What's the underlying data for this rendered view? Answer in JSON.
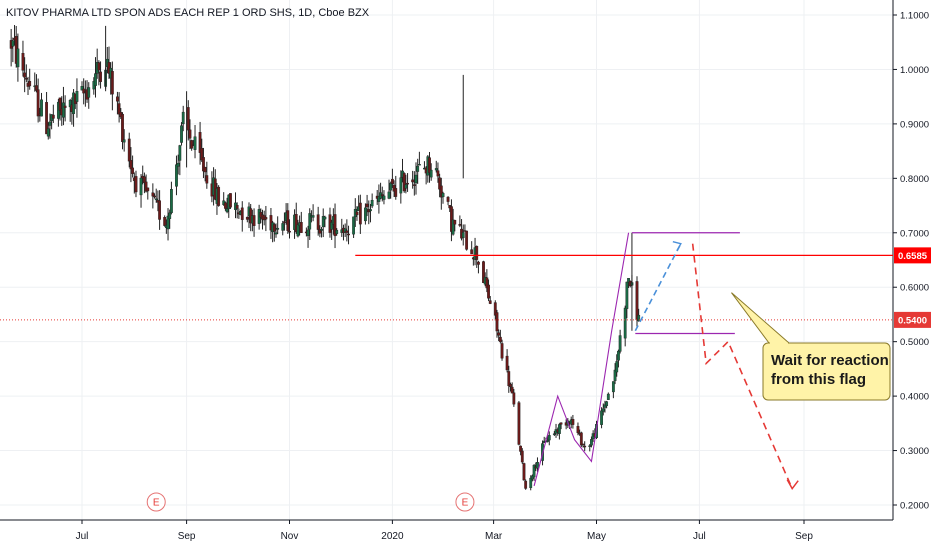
{
  "header": {
    "title": "KITOV PHARMA LTD SPON ADS EACH REP 1 ORD SHS, 1D, Cboe BZX"
  },
  "chart_data": {
    "type": "candlestick",
    "title": "KITOV PHARMA LTD SPON ADS EACH REP 1 ORD SHS, 1D, Cboe BZX",
    "ylim": [
      0.18,
      1.11
    ],
    "y_scale": "linear",
    "y_tick_labels": [
      "1.1000",
      "1.0000",
      "0.9000",
      "0.8000",
      "0.7000",
      "0.6000",
      "0.5000",
      "0.4000",
      "0.3000",
      "0.2000"
    ],
    "y_ticks": [
      1.1,
      1.0,
      0.9,
      0.8,
      0.7,
      0.6,
      0.5,
      0.4,
      0.3,
      0.2
    ],
    "x_tick_labels": [
      "Jul",
      "Sep",
      "Nov",
      "2020",
      "Mar",
      "May",
      "Jul",
      "Sep"
    ],
    "x_ticks": [
      "2019-07-01",
      "2019-09-01",
      "2019-11-01",
      "2020-01-01",
      "2020-03-01",
      "2020-05-01",
      "2020-07-01",
      "2020-09-01"
    ],
    "x_range": [
      "2019-05-20",
      "2020-10-20"
    ],
    "grid": true,
    "colors": {
      "up": "#26a69a",
      "down": "#ef5350",
      "wick": "#222222",
      "body_up": "#1a6b45",
      "body_down": "#6b1a1a"
    },
    "key_level": {
      "value": 0.6585,
      "label": "0.6585",
      "from": "2019-12-10",
      "color": "#ff0000"
    },
    "current_price": {
      "value": 0.54,
      "label": "0.5400",
      "color": "#e53935"
    },
    "earnings_markers": [
      {
        "date": "2019-08-14",
        "label": "E"
      },
      {
        "date": "2020-02-13",
        "label": "E"
      }
    ],
    "waypoints": [
      {
        "date": "2019-05-20",
        "value": 1.05
      },
      {
        "date": "2019-06-10",
        "value": 0.9
      },
      {
        "date": "2019-07-01",
        "value": 0.95
      },
      {
        "date": "2019-07-15",
        "value": 1.02
      },
      {
        "date": "2019-08-01",
        "value": 0.8
      },
      {
        "date": "2019-08-20",
        "value": 0.72
      },
      {
        "date": "2019-08-30",
        "value": 0.9
      },
      {
        "date": "2019-09-20",
        "value": 0.76
      },
      {
        "date": "2019-10-20",
        "value": 0.72
      },
      {
        "date": "2019-11-15",
        "value": 0.72
      },
      {
        "date": "2019-12-05",
        "value": 0.71
      },
      {
        "date": "2019-12-20",
        "value": 0.75
      },
      {
        "date": "2020-01-10",
        "value": 0.8
      },
      {
        "date": "2020-01-25",
        "value": 0.83
      },
      {
        "date": "2020-02-05",
        "value": 0.72
      },
      {
        "date": "2020-02-20",
        "value": 0.66
      },
      {
        "date": "2020-03-01",
        "value": 0.55
      },
      {
        "date": "2020-03-12",
        "value": 0.4
      },
      {
        "date": "2020-03-20",
        "value": 0.23
      },
      {
        "date": "2020-04-01",
        "value": 0.32
      },
      {
        "date": "2020-04-15",
        "value": 0.36
      },
      {
        "date": "2020-04-25",
        "value": 0.3
      },
      {
        "date": "2020-05-01",
        "value": 0.34
      },
      {
        "date": "2020-05-12",
        "value": 0.44
      },
      {
        "date": "2020-05-20",
        "value": 0.62
      },
      {
        "date": "2020-05-26",
        "value": 0.54
      }
    ],
    "pattern": {
      "rise_line": [
        {
          "date": "2020-03-25",
          "value": 0.235
        },
        {
          "date": "2020-04-08",
          "value": 0.4
        },
        {
          "date": "2020-04-18",
          "value": 0.32
        },
        {
          "date": "2020-04-28",
          "value": 0.28
        },
        {
          "date": "2020-05-10",
          "value": 0.52
        },
        {
          "date": "2020-05-20",
          "value": 0.7
        }
      ],
      "flag_top": {
        "from": "2020-05-22",
        "to": "2020-07-25",
        "value": 0.7
      },
      "flag_bottom": {
        "from": "2020-05-24",
        "to": "2020-07-22",
        "value": 0.515
      },
      "color": "#9c27b0"
    },
    "projection_blue": [
      {
        "date": "2020-05-24",
        "value": 0.52
      },
      {
        "date": "2020-06-20",
        "value": 0.68
      }
    ],
    "projection_red": [
      {
        "date": "2020-06-27",
        "value": 0.68
      },
      {
        "date": "2020-07-05",
        "value": 0.46
      },
      {
        "date": "2020-07-18",
        "value": 0.5
      },
      {
        "date": "2020-08-25",
        "value": 0.23
      }
    ],
    "callout": {
      "lines": [
        "Wait for reaction",
        "from this flag"
      ],
      "pointer_date": "2020-07-20",
      "pointer_value": 0.59
    }
  }
}
